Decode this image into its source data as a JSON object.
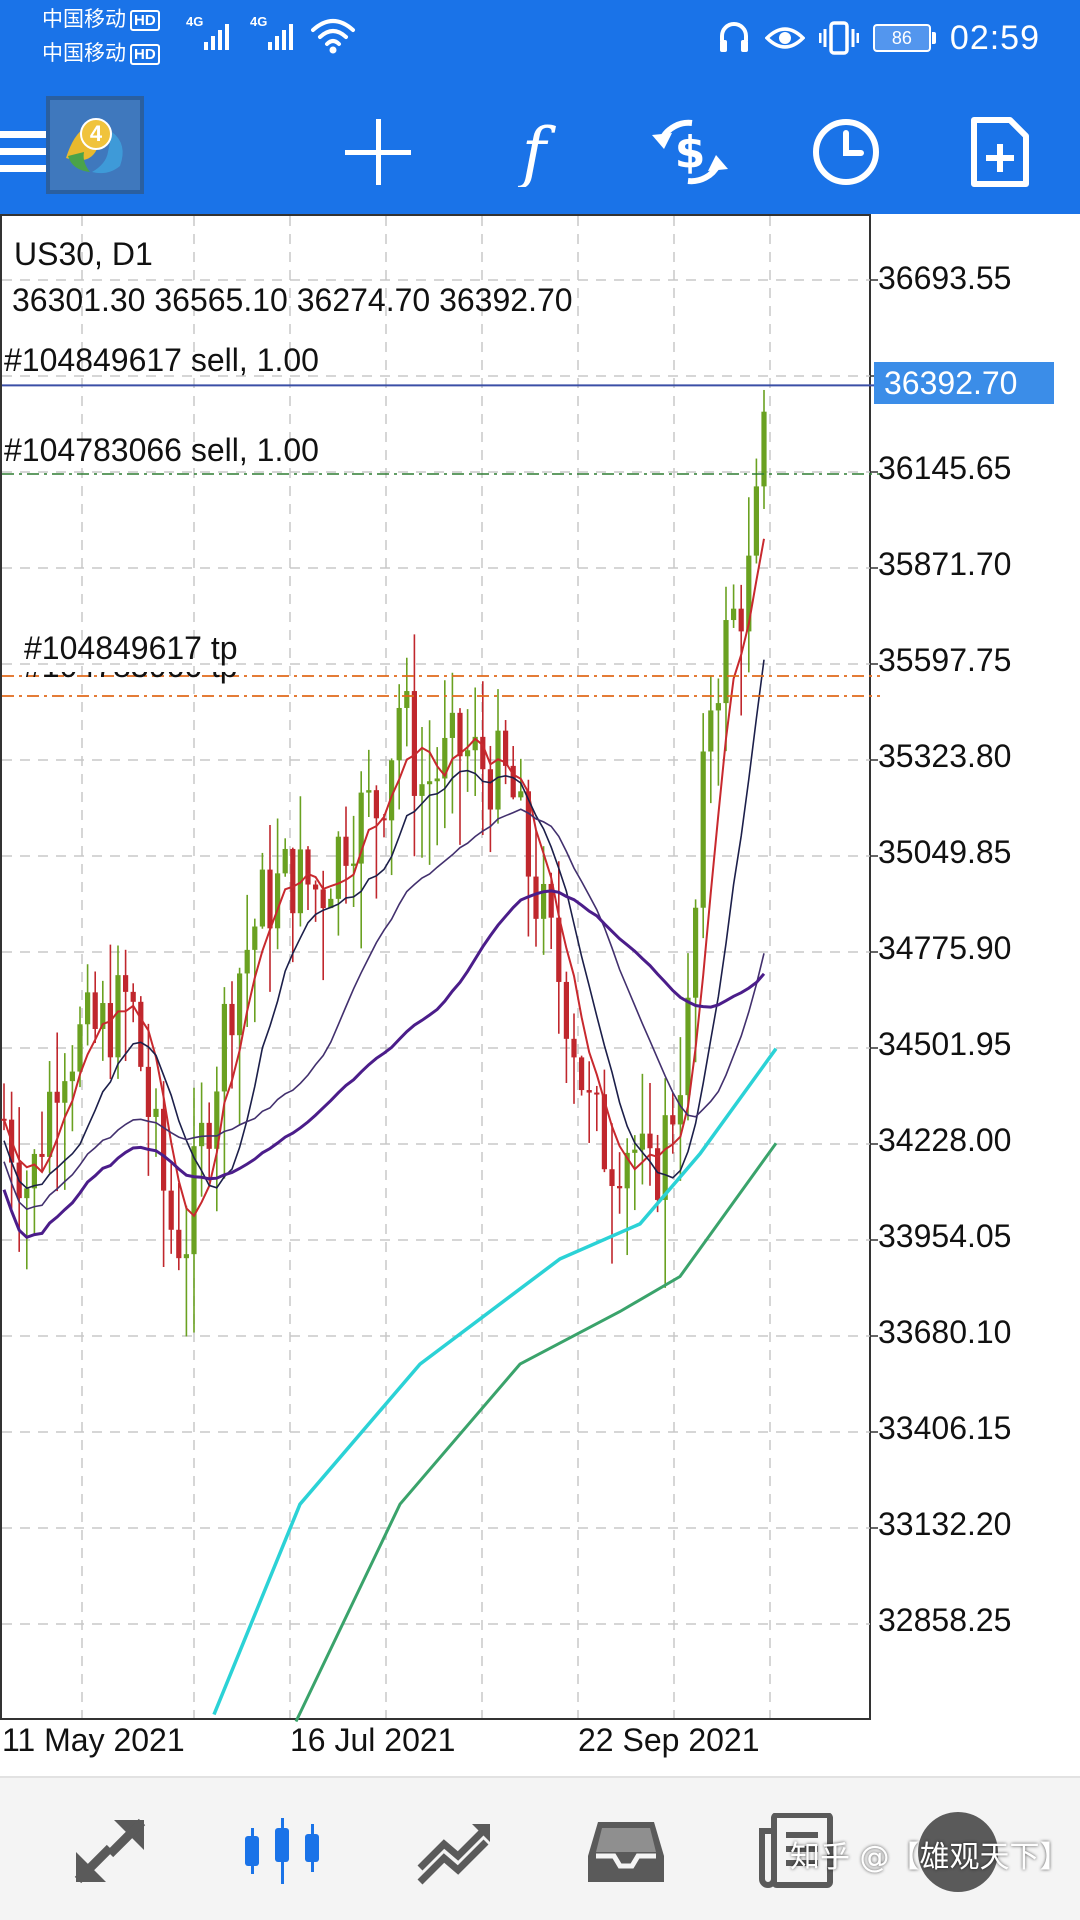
{
  "status_bar": {
    "carrier1": "中国移动",
    "carrier2": "中国移动",
    "hd_badge": "HD",
    "network_type": "4G",
    "battery": "86",
    "time": "02:59"
  },
  "toolbar": {
    "icons": [
      "menu-icon",
      "metatrader-logo",
      "crosshair-icon",
      "indicators-icon",
      "trade-icon",
      "timeframe-icon",
      "new-order-icon"
    ]
  },
  "chart": {
    "symbol_line": "US30, D1",
    "ohlc_line": "36301.30 36565.10 36274.70 36392.70",
    "order1_label": "#104849617 sell, 1.00",
    "order2_label": "#104783066 sell, 1.00",
    "tp1_label": "#104849617 tp",
    "tp2_label": "#104783066 tp",
    "current_price_label": "36392.70",
    "price_labels": [
      "36693.55",
      "36145.65",
      "35871.70",
      "35597.75",
      "35323.80",
      "35049.85",
      "34775.90",
      "34501.95",
      "34228.00",
      "33954.05",
      "33680.10",
      "33406.15",
      "33132.20",
      "32858.25"
    ],
    "date_labels": [
      "11 May 2021",
      "16 Jul 2021",
      "22 Sep 2021"
    ],
    "colors": {
      "bull": "#6aa121",
      "bear": "#c0272d",
      "grid": "#c8c8c8",
      "current_line": "#3b4fa6",
      "order2_line": "#2e7d32",
      "tp_line": "#e06a1b",
      "ma_red": "#c8292e",
      "ma_navy": "#1c1f4a",
      "ma_purple": "#4b1d8a",
      "ma_indigo": "#42306e",
      "ma_cyan": "#2bd2d6",
      "ma_green": "#3aa36b",
      "price_tag_bg": "#3b8de8"
    }
  },
  "bottom_nav": {
    "items": [
      "quotes-icon",
      "chart-icon",
      "trade-icon",
      "history-icon",
      "news-icon"
    ],
    "active": "chart-icon"
  },
  "watermark": "知乎 @【雄观天下】"
}
